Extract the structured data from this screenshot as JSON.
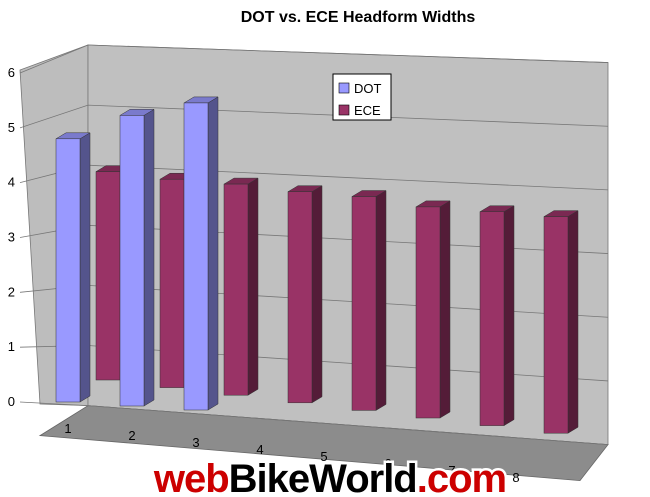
{
  "chart_data": {
    "type": "bar",
    "title": "DOT vs. ECE Headform Widths",
    "xlabel": "",
    "ylabel": "",
    "categories": [
      "1",
      "2",
      "3",
      "4",
      "5",
      "6",
      "7",
      "8"
    ],
    "ylim": [
      0,
      6
    ],
    "yticks": [
      "0",
      "1",
      "2",
      "3",
      "4",
      "5",
      "6"
    ],
    "grid": true,
    "legend": "top-center",
    "series": [
      {
        "name": "DOT",
        "color": "#9999FF",
        "values": [
          4.8,
          5.3,
          5.6,
          null,
          null,
          null,
          null,
          null
        ]
      },
      {
        "name": "ECE",
        "color": "#993366",
        "values": [
          3.8,
          3.8,
          3.85,
          3.85,
          3.9,
          3.85,
          3.9,
          3.95
        ]
      }
    ]
  },
  "watermark": {
    "text_prefix": "web",
    "text_brand": "BikeWorld",
    "text_suffix": ".com",
    "colors": {
      "prefix": "#cc0000",
      "brand": "#000000",
      "suffix": "#cc0000"
    }
  }
}
